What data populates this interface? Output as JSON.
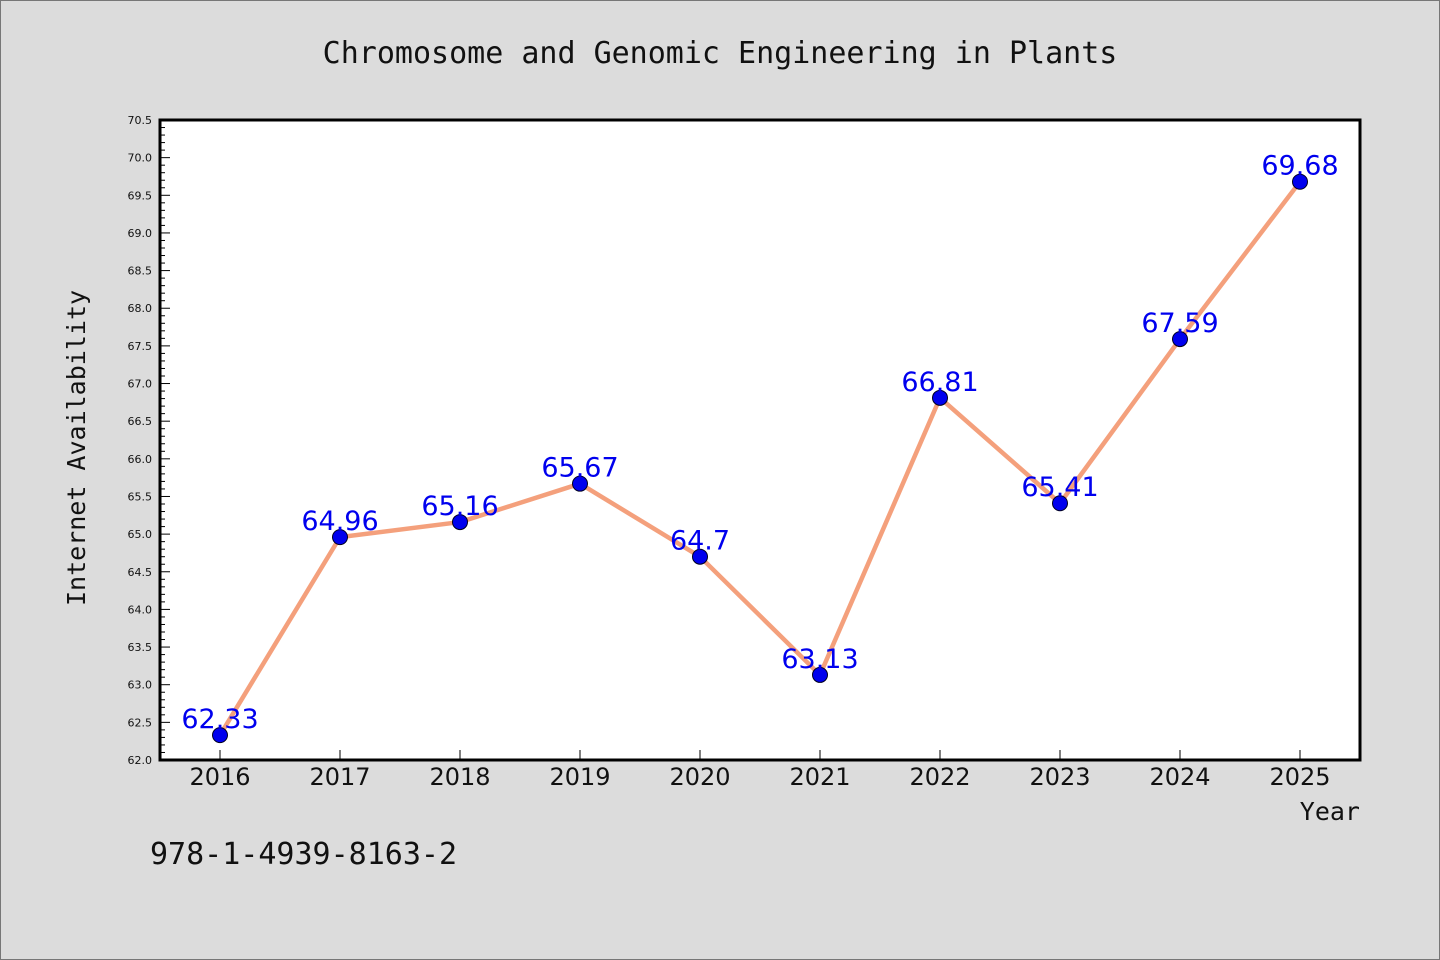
{
  "chart_data": {
    "type": "line",
    "title": "Chromosome and Genomic Engineering in Plants",
    "xlabel": "Year",
    "ylabel": "Internet Availability",
    "categories": [
      "2016",
      "2017",
      "2018",
      "2019",
      "2020",
      "2021",
      "2022",
      "2023",
      "2024",
      "2025"
    ],
    "series": [
      {
        "values": [
          62.33,
          64.96,
          65.16,
          65.67,
          64.7,
          63.13,
          66.81,
          65.41,
          67.59,
          69.68
        ],
        "labels": [
          "62.33",
          "64.96",
          "65.16",
          "65.67",
          "64.7",
          "63.13",
          "66.81",
          "65.41",
          "67.59",
          "69.68"
        ],
        "line_color": "#f4a07c",
        "marker_color": "#0000ee",
        "label_color": "#0000ee"
      }
    ],
    "ylim": [
      62.0,
      70.5
    ],
    "y_ticks": [
      "62.0",
      "62.5",
      "63.0",
      "63.5",
      "64.0",
      "64.5",
      "65.0",
      "65.5",
      "66.0",
      "66.5",
      "67.0",
      "67.5",
      "68.0",
      "68.5",
      "69.0",
      "69.5",
      "70.0",
      "70.5"
    ],
    "grid": false,
    "legend": "none",
    "background": "#dcdcdc",
    "plot_background": "#ffffff"
  },
  "footer": {
    "isbn": "978-1-4939-8163-2"
  }
}
